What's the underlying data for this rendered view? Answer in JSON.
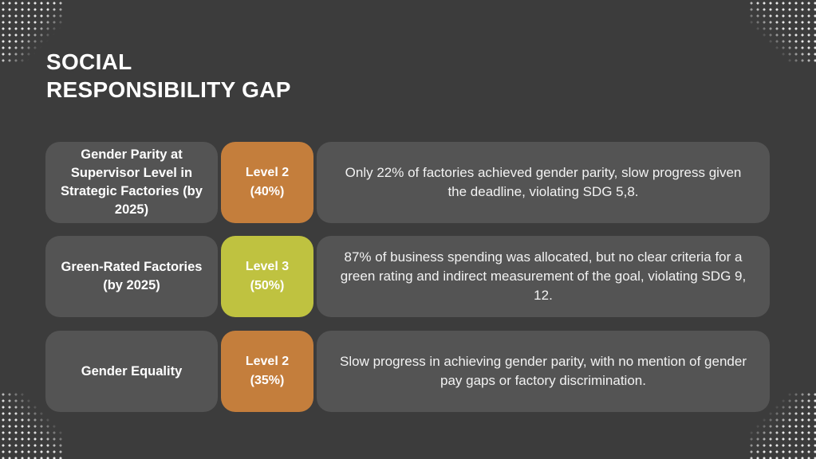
{
  "title": {
    "line1": "SOCIAL",
    "line2": "RESPONSIBILITY GAP"
  },
  "colors": {
    "background": "#3c3c3c",
    "box": "#545454",
    "level2": "#c47e3c",
    "level3": "#bfc240",
    "text": "#ffffff"
  },
  "rows": [
    {
      "goal": "Gender Parity at Supervisor Level in Strategic Factories (by 2025)",
      "level": "Level 2",
      "percent": "(40%)",
      "level_color": "#c47e3c",
      "description": "Only 22% of factories achieved gender parity, slow progress given the deadline, violating SDG 5,8."
    },
    {
      "goal": "Green-Rated Factories (by 2025)",
      "level": "Level 3",
      "percent": "(50%)",
      "level_color": "#bfc240",
      "description": "87% of business spending was allocated, but no clear criteria for a green rating and indirect measurement of the goal, violating SDG 9, 12."
    },
    {
      "goal": "Gender Equality",
      "level": "Level 2",
      "percent": "(35%)",
      "level_color": "#c47e3c",
      "description": "Slow progress in achieving gender parity, with no mention of gender pay gaps or factory discrimination."
    }
  ]
}
